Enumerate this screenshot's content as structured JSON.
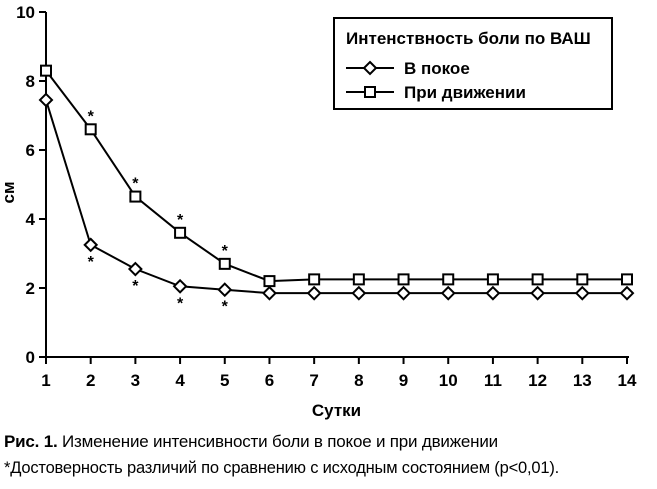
{
  "chart_data": {
    "type": "line",
    "x": [
      1,
      2,
      3,
      4,
      5,
      6,
      7,
      8,
      9,
      10,
      11,
      12,
      13,
      14
    ],
    "xlabel": "Сутки",
    "ylabel": "см",
    "ylim": [
      0,
      10
    ],
    "yticks": [
      0,
      2,
      4,
      6,
      8,
      10
    ],
    "xticks": [
      1,
      2,
      3,
      4,
      5,
      6,
      7,
      8,
      9,
      10,
      11,
      12,
      13,
      14
    ],
    "grid": false,
    "legend_title": "Интенствность боли по ВАШ",
    "legend_position": "top-right",
    "series": [
      {
        "name": "В покое",
        "marker": "diamond",
        "values": [
          7.45,
          3.25,
          2.55,
          2.05,
          1.95,
          1.85,
          1.85,
          1.85,
          1.85,
          1.85,
          1.85,
          1.85,
          1.85,
          1.85
        ],
        "significant": [
          false,
          true,
          true,
          true,
          true,
          false,
          false,
          false,
          false,
          false,
          false,
          false,
          false,
          false
        ]
      },
      {
        "name": "При движении",
        "marker": "square",
        "values": [
          8.3,
          6.6,
          4.65,
          3.6,
          2.7,
          2.2,
          2.25,
          2.25,
          2.25,
          2.25,
          2.25,
          2.25,
          2.25,
          2.25
        ],
        "significant": [
          false,
          true,
          true,
          true,
          true,
          false,
          false,
          false,
          false,
          false,
          false,
          false,
          false,
          false
        ]
      }
    ],
    "annotation_symbol": "*"
  },
  "caption": {
    "label": "Рис. 1.",
    "text": " Изменение интенсивности боли в покое и при движении",
    "note": "*Достоверность различий по сравнению с исходным состоянием (р<0,01)."
  }
}
